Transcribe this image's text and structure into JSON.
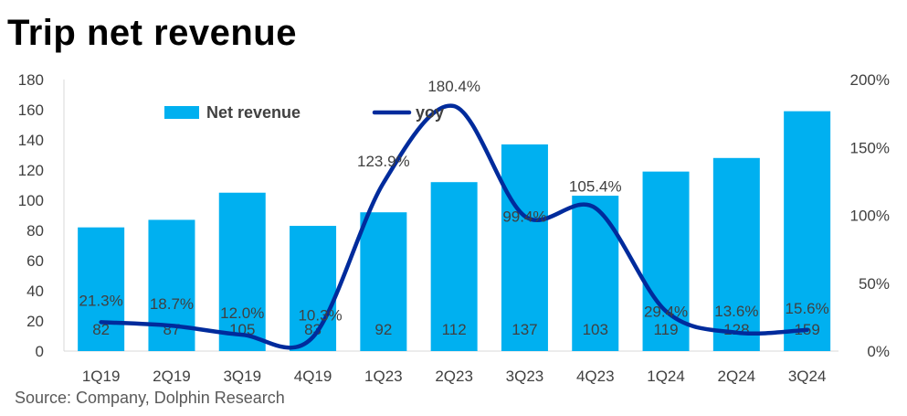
{
  "title": "Trip net revenue",
  "source": "Source: Company, Dolphin Research",
  "colors": {
    "bar": "#00B0F0",
    "line": "#002B9C"
  },
  "chart_data": {
    "type": "bar",
    "categories": [
      "1Q19",
      "2Q19",
      "3Q19",
      "4Q19",
      "1Q23",
      "2Q23",
      "3Q23",
      "4Q23",
      "1Q24",
      "2Q24",
      "3Q24"
    ],
    "series": [
      {
        "name": "Net revenue",
        "type": "bar",
        "axis": "left",
        "values": [
          82,
          87,
          105,
          83,
          92,
          112,
          137,
          103,
          119,
          128,
          159
        ]
      },
      {
        "name": "yoy",
        "type": "line",
        "axis": "right",
        "values": [
          21.3,
          18.7,
          12.0,
          10.3,
          123.9,
          180.4,
          99.4,
          105.4,
          29.4,
          13.6,
          15.6
        ]
      }
    ],
    "value_labels": [
      "82",
      "87",
      "105",
      "83",
      "92",
      "112",
      "137",
      "103",
      "119",
      "128",
      "159"
    ],
    "yoy_labels": [
      "21.3%",
      "18.7%",
      "12.0%",
      "10.3%",
      "123.9%",
      "180.4%",
      "99.4%",
      "105.4%",
      "29.4%",
      "13.6%",
      "15.6%"
    ],
    "ylim": [
      0,
      180
    ],
    "yticks": [
      "0",
      "20",
      "40",
      "60",
      "80",
      "100",
      "120",
      "140",
      "160",
      "180"
    ],
    "y2lim": [
      0,
      200
    ],
    "y2ticks": [
      "0%",
      "50%",
      "100%",
      "150%",
      "200%"
    ],
    "grid": false,
    "legend": "top"
  }
}
